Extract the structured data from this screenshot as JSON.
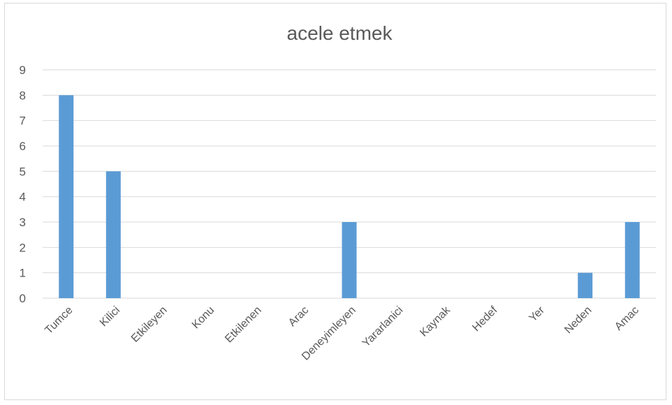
{
  "chart_data": {
    "type": "bar",
    "title": "acele etmek",
    "categories": [
      "Tumce",
      "Kilici",
      "Etkileyen",
      "Konu",
      "Etkilenen",
      "Arac",
      "Deneyimleyen",
      "Yararlanici",
      "Kaynak",
      "Hedef",
      "Yer",
      "Neden",
      "Amac"
    ],
    "values": [
      8,
      5,
      0,
      0,
      0,
      0,
      3,
      0,
      0,
      0,
      0,
      1,
      3
    ],
    "ylim": [
      0,
      9
    ],
    "yticks": [
      "0",
      "1",
      "2",
      "3",
      "4",
      "5",
      "6",
      "7",
      "8",
      "9"
    ],
    "xlabel": "",
    "ylabel": "",
    "grid": true,
    "legend": "none",
    "colors": {
      "bar": "#5b9bd5",
      "grid": "#d9d9d9",
      "text": "#595959"
    }
  }
}
